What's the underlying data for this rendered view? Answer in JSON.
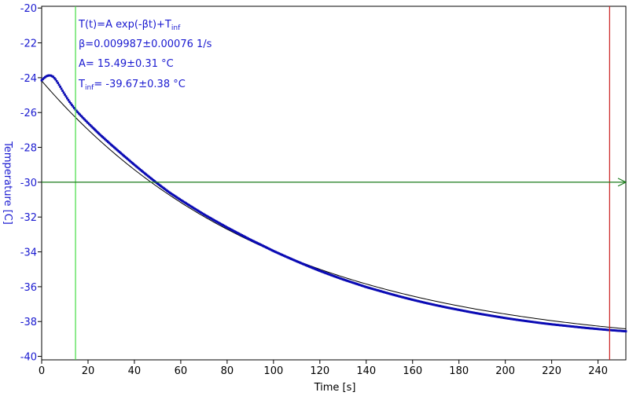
{
  "chart_data": {
    "type": "scatter",
    "xlabel": "Time [s]",
    "ylabel": "Temperature [C]",
    "xlim": [
      0,
      252
    ],
    "ylim": [
      -40.2,
      -19.9
    ],
    "x_ticks": [
      0,
      20,
      40,
      60,
      80,
      100,
      120,
      140,
      160,
      180,
      200,
      220,
      240
    ],
    "y_ticks": [
      -20,
      -22,
      -24,
      -26,
      -28,
      -30,
      -32,
      -34,
      -36,
      -38,
      -40
    ],
    "fit": {
      "A": 15.49,
      "beta": 0.009987,
      "T_inf": -39.67,
      "x_range": [
        0,
        252
      ]
    },
    "measured_points": [
      [
        0,
        -24.15
      ],
      [
        1,
        -24.02
      ],
      [
        2,
        -23.92
      ],
      [
        3,
        -23.87
      ],
      [
        4,
        -23.88
      ],
      [
        5,
        -23.95
      ],
      [
        6,
        -24.1
      ],
      [
        7,
        -24.3
      ],
      [
        8,
        -24.52
      ],
      [
        9,
        -24.75
      ],
      [
        10,
        -24.97
      ],
      [
        11,
        -25.18
      ],
      [
        12,
        -25.38
      ],
      [
        13,
        -25.56
      ],
      [
        14,
        -25.74
      ],
      [
        15,
        -25.9
      ],
      [
        16,
        -26.05
      ],
      [
        17,
        -26.19
      ],
      [
        18,
        -26.33
      ],
      [
        20,
        -26.6
      ],
      [
        22,
        -26.86
      ],
      [
        25,
        -27.25
      ],
      [
        30,
        -27.85
      ],
      [
        35,
        -28.43
      ],
      [
        40,
        -29.0
      ],
      [
        45,
        -29.55
      ],
      [
        50,
        -30.08
      ],
      [
        55,
        -30.58
      ],
      [
        60,
        -31.02
      ],
      [
        65,
        -31.44
      ],
      [
        70,
        -31.85
      ],
      [
        75,
        -32.23
      ],
      [
        80,
        -32.6
      ],
      [
        85,
        -32.95
      ],
      [
        90,
        -33.3
      ],
      [
        95,
        -33.62
      ],
      [
        100,
        -33.95
      ],
      [
        105,
        -34.25
      ],
      [
        110,
        -34.54
      ],
      [
        115,
        -34.82
      ],
      [
        120,
        -35.09
      ],
      [
        125,
        -35.34
      ],
      [
        130,
        -35.58
      ],
      [
        135,
        -35.8
      ],
      [
        140,
        -36.02
      ],
      [
        145,
        -36.21
      ],
      [
        150,
        -36.4
      ],
      [
        155,
        -36.58
      ],
      [
        160,
        -36.75
      ],
      [
        165,
        -36.91
      ],
      [
        170,
        -37.06
      ],
      [
        175,
        -37.2
      ],
      [
        180,
        -37.33
      ],
      [
        185,
        -37.46
      ],
      [
        190,
        -37.58
      ],
      [
        195,
        -37.69
      ],
      [
        200,
        -37.8
      ],
      [
        205,
        -37.9
      ],
      [
        210,
        -37.99
      ],
      [
        215,
        -38.08
      ],
      [
        220,
        -38.16
      ],
      [
        225,
        -38.23
      ],
      [
        230,
        -38.3
      ],
      [
        235,
        -38.37
      ],
      [
        240,
        -38.43
      ],
      [
        245,
        -38.49
      ],
      [
        250,
        -38.54
      ],
      [
        252,
        -38.56
      ]
    ],
    "cursor_x": 14.6,
    "cursor_x2": 245,
    "cursor_y": -30,
    "annotations": {
      "formula_main": "T(t)=A exp(-βt)+T",
      "formula_sub": "inf",
      "beta_line": "β=0.009987±0.00076 1/s",
      "a_line": "A= 15.49±0.31 °C",
      "tinf_main": "T",
      "tinf_sub": "inf",
      "tinf_rest": "= -39.67±0.38 °C"
    },
    "colors": {
      "data": "#0a0ab4",
      "fit": "#000000",
      "cursor_green": "#44dd44",
      "cursor_red": "#cc2222",
      "hline": "#1a7a1a",
      "axis_text": "#1a1ad0"
    }
  }
}
